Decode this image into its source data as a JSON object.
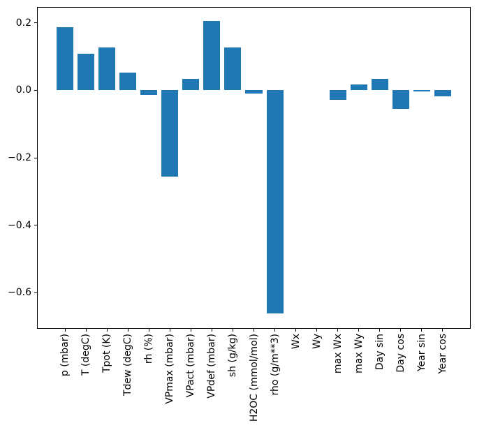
{
  "figure": {
    "title": "",
    "background_color": "#ffffff",
    "spine_color": "#000000",
    "tick_color": "#000000"
  },
  "chart_data": {
    "type": "bar",
    "title": "",
    "xlabel": "",
    "ylabel": "",
    "categories": [
      "p (mbar)",
      "T (degC)",
      "Tpot (K)",
      "Tdew (degC)",
      "rh (%)",
      "VPmax (mbar)",
      "VPact (mbar)",
      "VPdef (mbar)",
      "sh (g/kg)",
      "H2OC (mmol/mol)",
      "rho (g/m**3)",
      "Wx",
      "Wy",
      "max Wx",
      "max Wy",
      "Day sin",
      "Day cos",
      "Year sin",
      "Year cos"
    ],
    "values": [
      0.187,
      0.108,
      0.127,
      0.053,
      -0.013,
      -0.256,
      0.034,
      0.206,
      0.127,
      -0.01,
      -0.662,
      0.0,
      0.0,
      -0.028,
      0.018,
      0.033,
      -0.055,
      -0.003,
      -0.017
    ],
    "bar_color": "#1f77b4",
    "bar_width": 0.8,
    "xlim": [
      -1.34,
      19.34
    ],
    "ylim": [
      -0.707,
      0.247
    ],
    "yticks": [
      0.2,
      0.0,
      -0.2,
      -0.4,
      -0.6
    ],
    "ytick_labels": [
      "0.2",
      "0.0",
      "−0.2",
      "−0.4",
      "−0.6"
    ],
    "grid": false,
    "legend": null
  }
}
